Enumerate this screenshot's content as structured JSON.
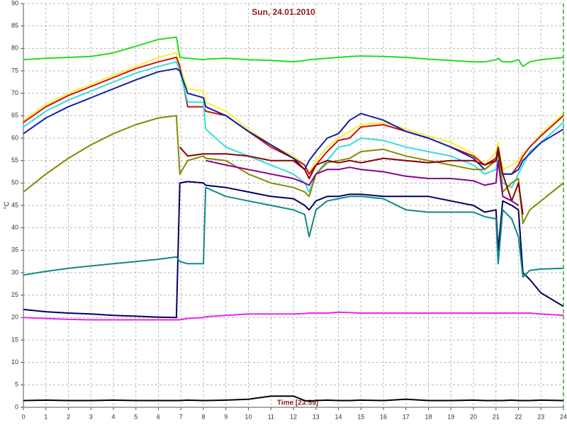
{
  "chart_data": {
    "type": "line",
    "title": "Sun, 24.01.2010",
    "xlabel": "Time [23:59]",
    "ylabel": "°C",
    "x": [
      0,
      1,
      2,
      3,
      4,
      5,
      6,
      6.8,
      6.95,
      7.3,
      8,
      8.1,
      9,
      10,
      11,
      12,
      12.5,
      12.7,
      13,
      13.5,
      14,
      14.5,
      15,
      16,
      17,
      18,
      19,
      20,
      20.5,
      21,
      21.1,
      21.3,
      21.7,
      22,
      22.2,
      22.5,
      23,
      24
    ],
    "xlim": [
      0,
      24
    ],
    "xticks": [
      0,
      1,
      2,
      3,
      4,
      5,
      6,
      7,
      8,
      9,
      10,
      11,
      12,
      13,
      14,
      15,
      16,
      17,
      18,
      19,
      20,
      21,
      22,
      23,
      24
    ],
    "ylim": [
      0,
      90
    ],
    "yticks": [
      0,
      5,
      10,
      15,
      20,
      25,
      30,
      35,
      40,
      45,
      50,
      55,
      60,
      65,
      70,
      75,
      80,
      85,
      90
    ],
    "grid": true,
    "series": [
      {
        "color": "#22dd22",
        "values": [
          77.5,
          77.8,
          78,
          78.2,
          79,
          80.5,
          82,
          82.5,
          78,
          77.8,
          77.5,
          77.6,
          77.8,
          77.5,
          77.3,
          77,
          77.3,
          77.5,
          77.6,
          77.8,
          78,
          78.2,
          78.3,
          78.2,
          78,
          77.6,
          77.3,
          77,
          77,
          77.5,
          77.8,
          77,
          77,
          77.5,
          76,
          77,
          77.5,
          78
        ]
      },
      {
        "color": "#ffee33",
        "values": [
          64,
          67.5,
          70,
          72,
          74,
          76,
          78,
          79,
          76,
          71,
          70.5,
          68,
          66,
          62,
          58.5,
          56,
          54,
          52,
          55,
          58,
          60,
          61.5,
          63,
          63.5,
          62,
          60.5,
          59,
          56.5,
          54,
          57,
          59,
          53,
          54,
          55,
          56.5,
          58,
          61,
          65.5
        ]
      },
      {
        "color": "#cc1111",
        "values": [
          63.5,
          67,
          69.5,
          71.5,
          73.5,
          75.5,
          77,
          78,
          76,
          67,
          67,
          66,
          65,
          61.5,
          58,
          55.5,
          54,
          52,
          54,
          57,
          59.5,
          60,
          62.5,
          63,
          61.5,
          60,
          58,
          56,
          54,
          55.5,
          58,
          52,
          52,
          54,
          56,
          58,
          60.5,
          65
        ]
      },
      {
        "color": "#33dddd",
        "values": [
          62.5,
          66,
          68.5,
          70.5,
          72.5,
          74.5,
          76,
          77,
          75,
          68,
          68,
          62,
          58,
          56,
          54,
          52,
          50,
          48,
          52,
          55,
          58,
          58.5,
          60,
          59.5,
          58,
          57,
          56,
          54,
          52,
          53,
          56,
          50,
          49,
          52,
          54,
          57,
          59,
          63.5
        ]
      },
      {
        "color": "#1122aa",
        "values": [
          61,
          64.5,
          67,
          69,
          71,
          73,
          74.8,
          75.5,
          75,
          70,
          69,
          67,
          65,
          61.5,
          58.5,
          55.5,
          53,
          55,
          57,
          60,
          61,
          64,
          65.5,
          64,
          61.5,
          60,
          58,
          55.5,
          53,
          55,
          57.5,
          52,
          52,
          53,
          55,
          56.5,
          59,
          62
        ]
      },
      {
        "color": "#888800",
        "values": [
          48,
          52,
          55.5,
          58.5,
          61,
          63,
          64.5,
          65,
          52,
          55,
          56,
          55.5,
          55,
          52,
          50,
          49,
          48,
          47,
          52,
          54.5,
          55,
          55.5,
          57,
          57.5,
          56,
          55,
          54,
          53,
          53,
          55,
          57,
          48,
          50,
          51,
          41,
          44,
          46,
          50
        ]
      },
      {
        "color": "#880000",
        "values": [
          null,
          null,
          null,
          null,
          null,
          null,
          null,
          null,
          58,
          56,
          56.5,
          56.5,
          56.5,
          56,
          55,
          55,
          53,
          51,
          54,
          55,
          54.5,
          55,
          54.5,
          55.5,
          55,
          54.5,
          55,
          55,
          54,
          55,
          57,
          52,
          46,
          50,
          43,
          null,
          null,
          null
        ]
      },
      {
        "color": "#000066",
        "values": [
          21.8,
          21.3,
          21,
          20.8,
          20.5,
          20.3,
          20.1,
          20,
          50,
          50.3,
          50,
          49.5,
          49,
          48,
          47,
          46.5,
          45,
          44,
          46,
          47,
          47,
          47.5,
          47.5,
          47,
          47,
          47,
          46,
          45,
          43.5,
          44,
          35,
          46,
          45,
          44,
          30,
          28.5,
          25.5,
          22.5
        ]
      },
      {
        "color": "#880088",
        "values": [
          null,
          null,
          null,
          null,
          null,
          null,
          null,
          null,
          null,
          null,
          null,
          55,
          54,
          53,
          52,
          51,
          50,
          49.5,
          52,
          53,
          53,
          53.5,
          53,
          52.5,
          51.5,
          51,
          51,
          50.5,
          49.5,
          50,
          55,
          47,
          46,
          45,
          null,
          null,
          null,
          null
        ]
      },
      {
        "color": "#118888",
        "values": [
          29.5,
          30.3,
          31,
          31.5,
          32,
          32.5,
          33,
          33.5,
          32.5,
          32,
          32,
          49,
          47,
          46,
          45,
          44,
          43,
          38,
          44,
          46,
          46.5,
          47,
          47,
          46.5,
          44,
          43.5,
          43.5,
          43.5,
          42.5,
          42,
          32,
          44,
          42,
          38,
          29,
          30.5,
          30.8,
          31
        ]
      },
      {
        "color": "#ee22ee",
        "values": [
          20,
          19.8,
          19.6,
          19.5,
          19.5,
          19.5,
          19.5,
          19.5,
          19.5,
          19.8,
          20,
          20.2,
          20.5,
          20.8,
          20.8,
          20.8,
          20.9,
          21,
          21,
          21,
          21.2,
          21.1,
          21,
          21,
          21,
          21,
          21,
          21,
          21,
          21,
          21,
          21,
          21,
          21,
          21,
          21,
          20.8,
          20.5
        ]
      },
      {
        "color": "#000000",
        "values": [
          1.5,
          1.6,
          1.5,
          1.5,
          1.6,
          1.5,
          1.5,
          1.5,
          1.5,
          1.6,
          1.5,
          1.5,
          1.6,
          1.8,
          2.5,
          2.5,
          1.5,
          1.4,
          1.5,
          1.6,
          1.5,
          1.5,
          1.6,
          1.5,
          1.8,
          1.5,
          1.5,
          1.6,
          1.5,
          1.5,
          1.5,
          1.5,
          1.6,
          1.5,
          1.5,
          1.5,
          1.6,
          1.5
        ]
      }
    ]
  }
}
